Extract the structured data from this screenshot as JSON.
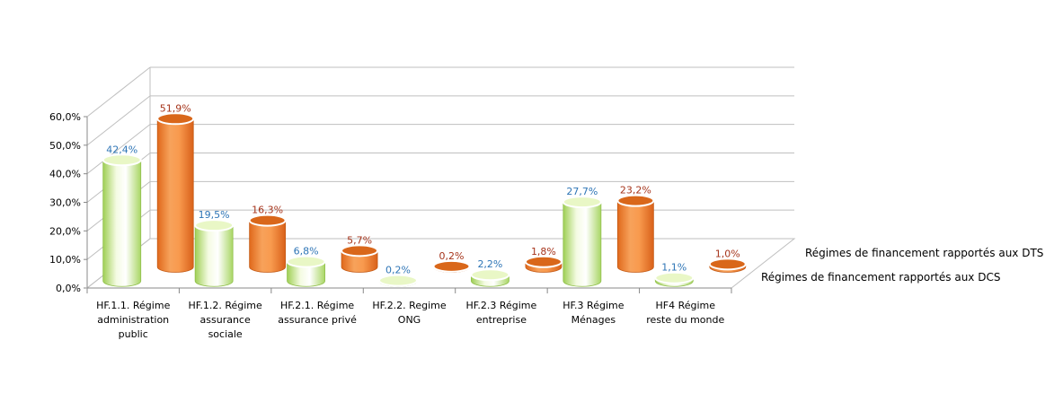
{
  "chart_data": {
    "type": "bar",
    "subtype": "3d-cylinder",
    "title": "",
    "xlabel": "",
    "ylabel": "",
    "ylim": [
      0,
      60
    ],
    "y_ticks": [
      "0,0%",
      "10,0%",
      "20,0%",
      "30,0%",
      "40,0%",
      "50,0%",
      "60,0%"
    ],
    "grid": true,
    "legend_position": "right",
    "categories": [
      [
        "HF.1.1. Régime",
        "administration",
        "public"
      ],
      [
        "HF.1.2. Régime",
        "assurance",
        "sociale"
      ],
      [
        "HF.2.1. Régime",
        "assurance privé"
      ],
      [
        "HF.2.2. Regime",
        "ONG"
      ],
      [
        "HF.2.3 Régime",
        "entreprise"
      ],
      [
        "HF.3 Régime",
        "Ménages"
      ],
      [
        "HF4 Régime",
        "reste du monde"
      ]
    ],
    "series": [
      {
        "name": "Régimes de financement rapportés aux DCS",
        "values": [
          42.4,
          19.5,
          6.8,
          0.2,
          2.2,
          27.7,
          1.1
        ],
        "labels": [
          "42,4%",
          "19,5%",
          "6,8%",
          "0,2%",
          "2,2%",
          "27,7%",
          "1,1%"
        ],
        "color_body": "#d6ef9e",
        "color_top": "#e9f7c6",
        "label_color": "#2e75b6"
      },
      {
        "name": "Régimes de financement rapportés aux DTS",
        "values": [
          51.9,
          16.3,
          5.7,
          0.2,
          1.8,
          23.2,
          1.0
        ],
        "labels": [
          "51,9%",
          "16,3%",
          "5,7%",
          "0,2%",
          "1,8%",
          "23,2%",
          "1,0%"
        ],
        "color_body": "#f0883a",
        "color_top": "#d9671a",
        "label_color": "#a6341b"
      }
    ]
  }
}
